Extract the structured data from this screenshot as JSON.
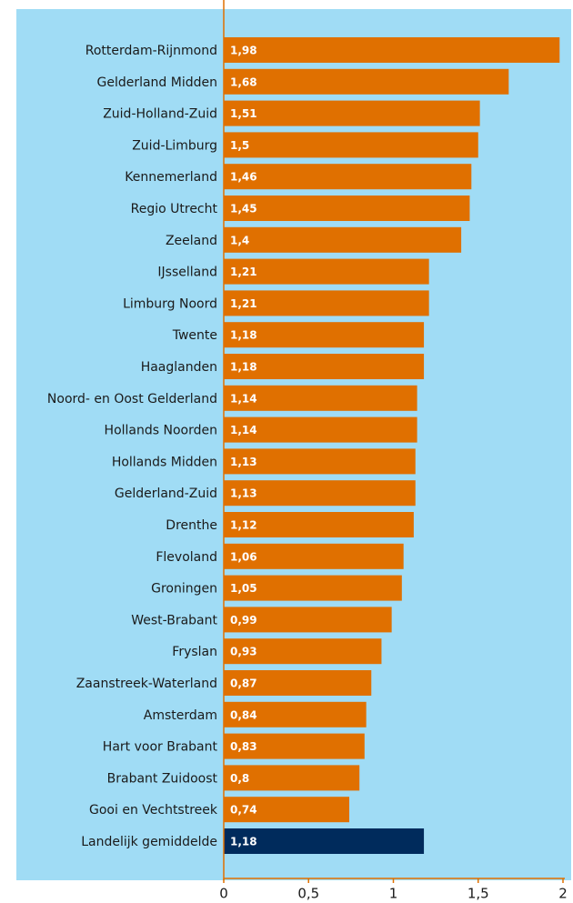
{
  "chart_data": {
    "type": "bar",
    "orientation": "horizontal",
    "categories": [
      "Rotterdam-Rijnmond",
      "Gelderland Midden",
      "Zuid-Holland-Zuid",
      "Zuid-Limburg",
      "Kennemerland",
      "Regio Utrecht",
      "Zeeland",
      "IJsselland",
      "Limburg Noord",
      "Twente",
      "Haaglanden",
      "Noord- en Oost Gelderland",
      "Hollands Noorden",
      "Hollands Midden",
      "Gelderland-Zuid",
      "Drenthe",
      "Flevoland",
      "Groningen",
      "West-Brabant",
      "Fryslan",
      "Zaanstreek-Waterland",
      "Amsterdam",
      "Hart voor Brabant",
      "Brabant Zuidoost",
      "Gooi en Vechtstreek",
      "Landelijk gemiddelde"
    ],
    "values": [
      1.98,
      1.68,
      1.51,
      1.5,
      1.46,
      1.45,
      1.4,
      1.21,
      1.21,
      1.18,
      1.18,
      1.14,
      1.14,
      1.13,
      1.13,
      1.12,
      1.06,
      1.05,
      0.99,
      0.93,
      0.87,
      0.84,
      0.83,
      0.8,
      0.74,
      1.18
    ],
    "value_labels": [
      "1,98",
      "1,68",
      "1,51",
      "1,5",
      "1,46",
      "1,45",
      "1,4",
      "1,21",
      "1,21",
      "1,18",
      "1,18",
      "1,14",
      "1,14",
      "1,13",
      "1,13",
      "1,12",
      "1,06",
      "1,05",
      "0,99",
      "0,93",
      "0,87",
      "0,84",
      "0,83",
      "0,8",
      "0,74",
      "1,18"
    ],
    "colors": [
      "#e07000",
      "#e07000",
      "#e07000",
      "#e07000",
      "#e07000",
      "#e07000",
      "#e07000",
      "#e07000",
      "#e07000",
      "#e07000",
      "#e07000",
      "#e07000",
      "#e07000",
      "#e07000",
      "#e07000",
      "#e07000",
      "#e07000",
      "#e07000",
      "#e07000",
      "#e07000",
      "#e07000",
      "#e07000",
      "#e07000",
      "#e07000",
      "#e07000",
      "#002b5c"
    ],
    "xlim": [
      0,
      2
    ],
    "xticks": [
      0,
      {
        "value": 0.5,
        "label": "0,5"
      },
      1,
      {
        "value": 1.5,
        "label": "1,5"
      },
      2
    ],
    "background": "#a0dcf5",
    "axis_color": "#e07000"
  }
}
